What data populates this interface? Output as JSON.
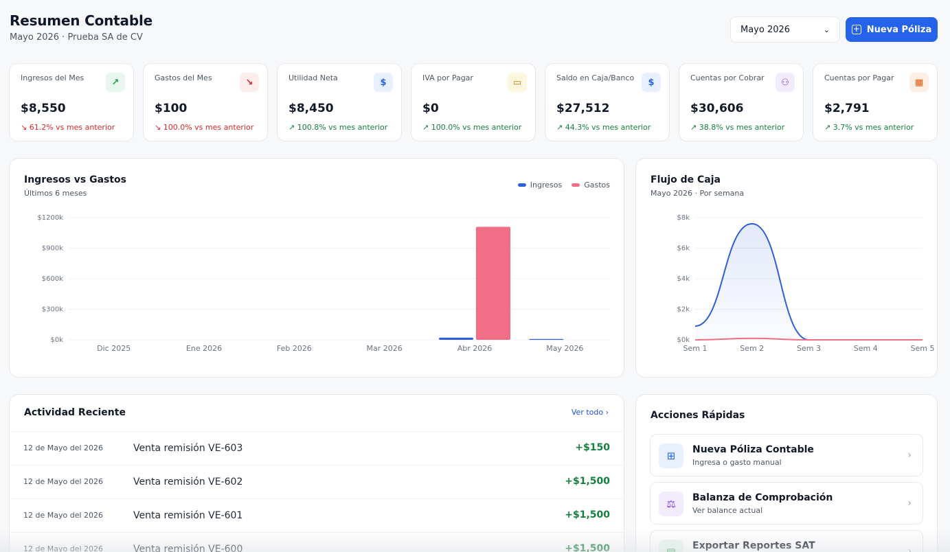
{
  "header": {
    "title": "Resumen Contable",
    "subtitle": "Mayo 2026 · Prueba SA de CV",
    "month_select": "Mayo 2026",
    "new_button": "Nueva Póliza"
  },
  "kpis": [
    {
      "label": "Ingresos del Mes",
      "value": "$8,550",
      "change": "61.2% vs mes anterior",
      "trend": "down",
      "icon": "trending-up-icon",
      "icon_char": "↗",
      "icon_bg": "#e8f7ee",
      "icon_color": "#16a34a"
    },
    {
      "label": "Gastos del Mes",
      "value": "$100",
      "change": "100.0% vs mes anterior",
      "trend": "down",
      "icon": "trending-down-icon",
      "icon_char": "↘",
      "icon_bg": "#fdecec",
      "icon_color": "#dc2626"
    },
    {
      "label": "Utilidad Neta",
      "value": "$8,450",
      "change": "100.8% vs mes anterior",
      "trend": "up",
      "icon": "dollar-icon",
      "icon_char": "$",
      "icon_bg": "#e8f0fe",
      "icon_color": "#2563eb"
    },
    {
      "label": "IVA por Pagar",
      "value": "$0",
      "change": "100.0% vs mes anterior",
      "trend": "up",
      "icon": "credit-card-icon",
      "icon_char": "▭",
      "icon_bg": "#fef7e0",
      "icon_color": "#d97706"
    },
    {
      "label": "Saldo en Caja/Banco",
      "value": "$27,512",
      "change": "44.3% vs mes anterior",
      "trend": "up",
      "icon": "dollar-icon",
      "icon_char": "$",
      "icon_bg": "#e8f0fe",
      "icon_color": "#2563eb"
    },
    {
      "label": "Cuentas por Cobrar",
      "value": "$30,606",
      "change": "38.8% vs mes anterior",
      "trend": "up",
      "icon": "users-icon",
      "icon_char": "⚇",
      "icon_bg": "#f3ecfd",
      "icon_color": "#7c3aed"
    },
    {
      "label": "Cuentas por Pagar",
      "value": "$2,791",
      "change": "3.7% vs mes anterior",
      "trend": "up",
      "icon": "building-icon",
      "icon_char": "▦",
      "icon_bg": "#fdefe3",
      "icon_color": "#ea580c"
    }
  ],
  "income_chart": {
    "title": "Ingresos vs Gastos",
    "subtitle": "Últimos 6 meses",
    "legend": [
      "Ingresos",
      "Gastos"
    ]
  },
  "cash_chart": {
    "title": "Flujo de Caja",
    "subtitle": "Mayo 2026 · Por semana"
  },
  "chart_data": [
    {
      "type": "bar",
      "categories": [
        "Dic 2025",
        "Ene 2026",
        "Feb 2026",
        "Mar 2026",
        "Abr 2026",
        "May 2026"
      ],
      "series": [
        {
          "name": "Ingresos",
          "color": "#2f5fd6",
          "values": [
            0,
            0,
            0,
            0,
            22000,
            8550
          ]
        },
        {
          "name": "Gastos",
          "color": "#f06e86",
          "values": [
            0,
            0,
            0,
            0,
            1110000,
            100
          ]
        }
      ],
      "yticks": [
        "$0k",
        "$300k",
        "$600k",
        "$900k",
        "$1200k"
      ],
      "ylim": [
        0,
        1200000
      ],
      "grid": true,
      "legend": "top-right"
    },
    {
      "type": "line",
      "categories": [
        "Sem 1",
        "Sem 2",
        "Sem 3",
        "Sem 4",
        "Sem 5"
      ],
      "series": [
        {
          "color": "#2f5fd6",
          "values": [
            900,
            7600,
            0,
            0,
            0
          ]
        },
        {
          "color": "#f06e86",
          "values": [
            0,
            100,
            0,
            0,
            0
          ]
        }
      ],
      "yticks": [
        "$0k",
        "$2k",
        "$4k",
        "$6k",
        "$8k"
      ],
      "ylim": [
        0,
        8000
      ],
      "grid": true
    }
  ],
  "activity": {
    "title": "Actividad Reciente",
    "view_all": "Ver todo",
    "rows": [
      {
        "date": "12 de Mayo del 2026",
        "desc": "Venta remisión VE-603",
        "amount": "+$150"
      },
      {
        "date": "12 de Mayo del 2026",
        "desc": "Venta remisión VE-602",
        "amount": "+$1,500"
      },
      {
        "date": "12 de Mayo del 2026",
        "desc": "Venta remisión VE-601",
        "amount": "+$1,500"
      },
      {
        "date": "12 de Mayo del 2026",
        "desc": "Venta remisión VE-600",
        "amount": "+$1,500"
      }
    ]
  },
  "quick_actions": {
    "title": "Acciones Rápidas",
    "items": [
      {
        "title": "Nueva Póliza Contable",
        "sub": "Ingresa o gasto manual",
        "icon": "plus-square-icon",
        "icon_char": "⊞",
        "icon_bg": "#e8f0fe",
        "icon_color": "#2563eb"
      },
      {
        "title": "Balanza de Comprobación",
        "sub": "Ver balance actual",
        "icon": "scale-icon",
        "icon_char": "⚖",
        "icon_bg": "#f3ecfd",
        "icon_color": "#7c3aed"
      },
      {
        "title": "Exportar Reportes SAT",
        "sub": "",
        "icon": "file-export-icon",
        "icon_char": "▤",
        "icon_bg": "#e8f7ee",
        "icon_color": "#16a34a"
      }
    ]
  }
}
